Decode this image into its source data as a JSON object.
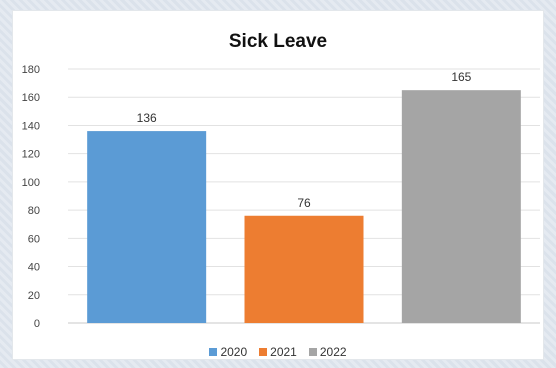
{
  "chart_data": {
    "type": "bar",
    "title": "Sick Leave",
    "categories": [
      "2020",
      "2021",
      "2022"
    ],
    "values": [
      136,
      76,
      165
    ],
    "colors": [
      "#5b9bd5",
      "#ed7d31",
      "#a5a5a5"
    ],
    "ylim": [
      0,
      180
    ],
    "yticks": [
      "0",
      "20",
      "40",
      "60",
      "80",
      "100",
      "120",
      "140",
      "160",
      "180"
    ],
    "data_labels": [
      "136",
      "76",
      "165"
    ],
    "grid": true,
    "legend_position": "bottom"
  }
}
